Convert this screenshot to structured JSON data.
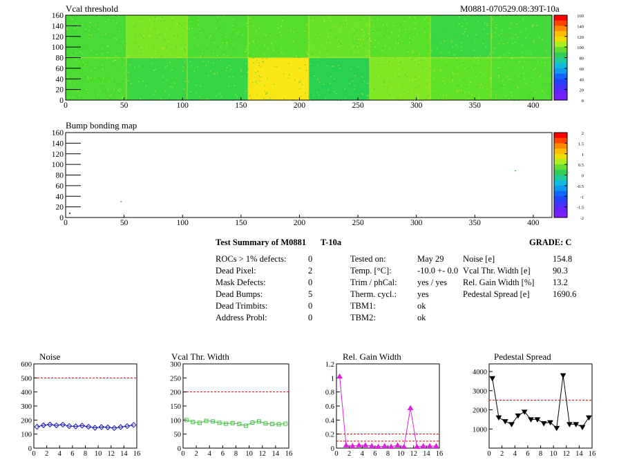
{
  "header": {
    "map1_title": "Vcal threshold",
    "module_id": "M0881-070529.08:39T-10a",
    "map2_title": "Bump bonding map"
  },
  "summary": {
    "title": "Test Summary of M0881",
    "temp_label": "T-10a",
    "grade_label": "GRADE:  C",
    "defects": [
      {
        "label": "ROCs > 1% defects:",
        "value": "0"
      },
      {
        "label": "Dead Pixel:",
        "value": "2"
      },
      {
        "label": "Mask Defects:",
        "value": "0"
      },
      {
        "label": "Dead Bumps:",
        "value": "5"
      },
      {
        "label": "Dead Trimbits:",
        "value": "0"
      },
      {
        "label": "Address Probl:",
        "value": "0"
      }
    ],
    "conditions": [
      {
        "label": "Tested on:",
        "value": "May 29"
      },
      {
        "label": "Temp. [°C]:",
        "value": "-10.0 +- 0.0"
      },
      {
        "label": "Trim / phCal:",
        "value": "yes / yes"
      },
      {
        "label": "Therm. cycl.:",
        "value": "yes"
      },
      {
        "label": "TBM1:",
        "value": "ok"
      },
      {
        "label": "TBM2:",
        "value": "ok"
      }
    ],
    "results": [
      {
        "label": "Noise [e]",
        "value": "154.8"
      },
      {
        "label": "Vcal Thr. Width [e]",
        "value": "90.3"
      },
      {
        "label": "Rel. Gain Width [%]",
        "value": "13.2"
      },
      {
        "label": "Pedestal Spread [e]",
        "value": "1690.6"
      }
    ]
  },
  "chart_data": [
    {
      "type": "heatmap",
      "title": "Vcal threshold",
      "xlim": [
        0,
        416
      ],
      "ylim": [
        0,
        160
      ],
      "xticks": [
        0,
        50,
        100,
        150,
        200,
        250,
        300,
        350,
        400
      ],
      "yticks": [
        0,
        20,
        40,
        60,
        80,
        100,
        120,
        140,
        160
      ],
      "zlim": [
        0,
        160
      ],
      "palette_ticks": [
        0,
        20,
        40,
        60,
        80,
        100,
        120,
        140,
        160
      ],
      "roc_blocks_top": [
        95,
        103,
        96,
        98,
        101,
        99,
        92,
        94
      ],
      "roc_blocks_bottom": [
        96,
        92,
        91,
        128,
        88,
        104,
        100,
        97
      ],
      "colors": {
        "low": "#7a20ff",
        "mid": "#40e040",
        "high": "#ff0000"
      }
    },
    {
      "type": "heatmap",
      "title": "Bump bonding map",
      "xlim": [
        0,
        416
      ],
      "ylim": [
        0,
        160
      ],
      "xticks": [
        0,
        50,
        100,
        150,
        200,
        250,
        300,
        350,
        400
      ],
      "yticks": [
        0,
        20,
        40,
        60,
        80,
        100,
        120,
        140,
        160
      ],
      "zlim": [
        -2,
        2
      ],
      "palette_ticks": [
        "2",
        "1.5",
        "1",
        "0.5",
        "0",
        "-0.5",
        "-1",
        "-1.5",
        "-2"
      ],
      "points": [
        {
          "x": 47,
          "y": 31
        },
        {
          "x": 384,
          "y": 89
        },
        {
          "x": 3,
          "y": 9
        }
      ]
    },
    {
      "type": "line",
      "title": "Noise",
      "xlim": [
        0,
        16
      ],
      "ylim": [
        0,
        600
      ],
      "xticks": [
        0,
        2,
        4,
        6,
        8,
        10,
        12,
        14,
        16
      ],
      "yticks": [
        0,
        100,
        200,
        300,
        400,
        500,
        600
      ],
      "x": [
        0.5,
        1.5,
        2.5,
        3.5,
        4.5,
        5.5,
        6.5,
        7.5,
        8.5,
        9.5,
        10.5,
        11.5,
        12.5,
        13.5,
        14.5,
        15.5
      ],
      "values": [
        152,
        163,
        168,
        162,
        167,
        157,
        155,
        160,
        152,
        145,
        150,
        148,
        143,
        150,
        157,
        165
      ],
      "limits": [
        500
      ],
      "color": "#1010c0",
      "marker": "diamond"
    },
    {
      "type": "line",
      "title": "Vcal Thr. Width",
      "xlim": [
        0,
        16
      ],
      "ylim": [
        0,
        300
      ],
      "xticks": [
        0,
        2,
        4,
        6,
        8,
        10,
        12,
        14,
        16
      ],
      "yticks": [
        0,
        50,
        100,
        150,
        200,
        250,
        300
      ],
      "x": [
        0.5,
        1.5,
        2.5,
        3.5,
        4.5,
        5.5,
        6.5,
        7.5,
        8.5,
        9.5,
        10.5,
        11.5,
        12.5,
        13.5,
        14.5,
        15.5
      ],
      "values": [
        100,
        93,
        90,
        97,
        95,
        90,
        87,
        89,
        86,
        80,
        91,
        95,
        88,
        86,
        85,
        87
      ],
      "limits": [
        200
      ],
      "color": "#40c040",
      "marker": "square"
    },
    {
      "type": "line",
      "title": "Rel. Gain Width",
      "xlim": [
        0,
        16
      ],
      "ylim": [
        0,
        1.2
      ],
      "xticks": [
        0,
        2,
        4,
        6,
        8,
        10,
        12,
        14,
        16
      ],
      "yticks": [
        0,
        0.2,
        0.4,
        0.6,
        0.8,
        1,
        1.2
      ],
      "x": [
        0.5,
        1.5,
        2.5,
        3.5,
        4.5,
        5.5,
        6.5,
        7.5,
        8.5,
        9.5,
        10.5,
        11.5,
        12.5,
        13.5,
        14.5,
        15.5
      ],
      "values": [
        1.02,
        0.04,
        0.03,
        0.04,
        0.04,
        0.03,
        0.02,
        0.03,
        0.02,
        0.04,
        0.02,
        0.57,
        0.02,
        0.03,
        0.03,
        0.03
      ],
      "limits": [
        0.1,
        0.2
      ],
      "color": "#e020e0",
      "marker": "triangle"
    },
    {
      "type": "line",
      "title": "Pedestal Spread",
      "xlim": [
        0,
        16
      ],
      "ylim": [
        0,
        4400
      ],
      "xticks": [
        0,
        2,
        4,
        6,
        8,
        10,
        12,
        14,
        16
      ],
      "yticks": [
        1000,
        2000,
        3000,
        4000
      ],
      "x": [
        0.5,
        1.5,
        2.5,
        3.5,
        4.5,
        5.5,
        6.5,
        7.5,
        8.5,
        9.5,
        10.5,
        11.5,
        12.5,
        13.5,
        14.5,
        15.5
      ],
      "values": [
        3650,
        1600,
        1400,
        1250,
        1700,
        1900,
        1500,
        1500,
        1300,
        1350,
        1050,
        3800,
        1250,
        1250,
        1100,
        1600
      ],
      "limits": [
        2500
      ],
      "color": "#000000",
      "marker": "triangle-down"
    }
  ]
}
